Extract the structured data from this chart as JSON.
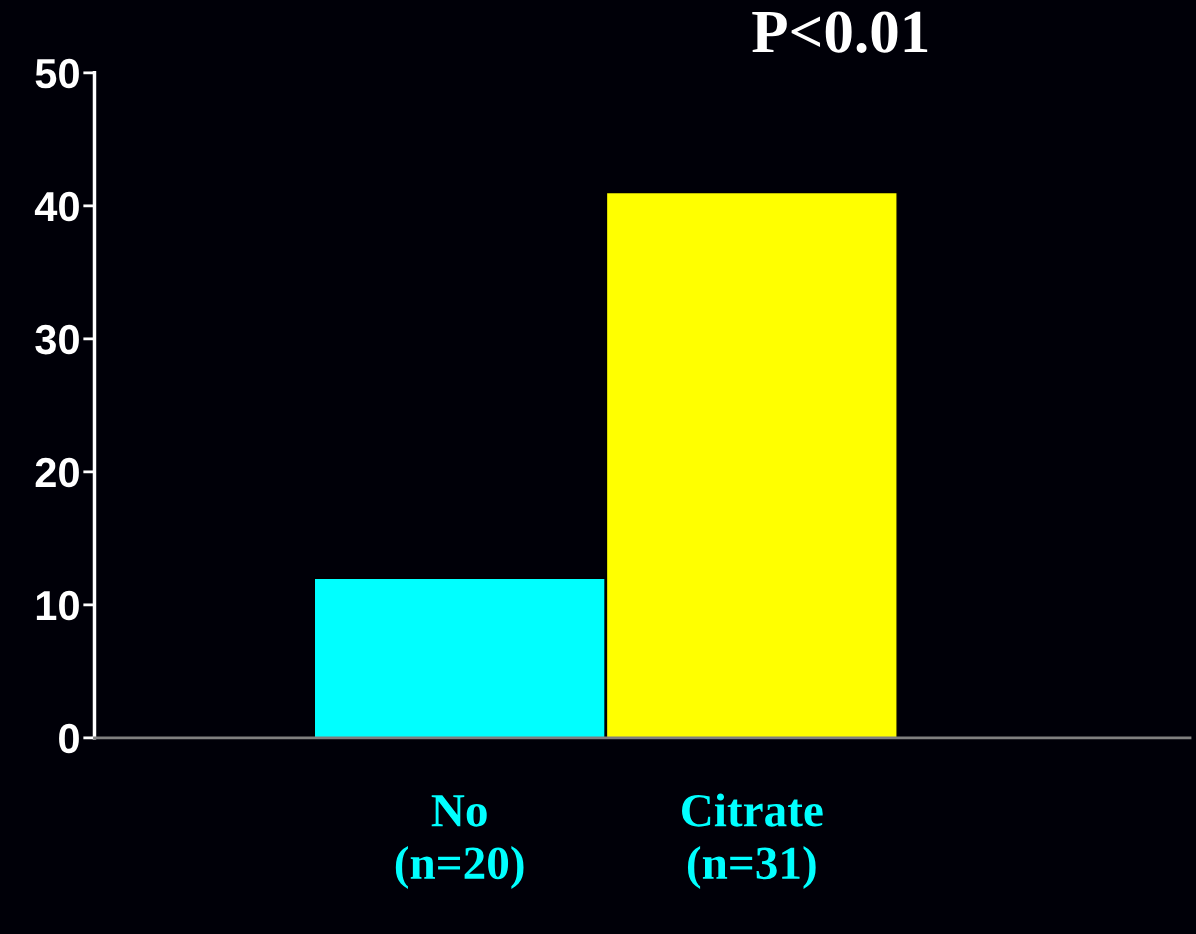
{
  "chart_data": {
    "type": "bar",
    "categories": [
      "No\n(n=20)",
      "Citrate\n(n=31)"
    ],
    "values": [
      12,
      41
    ],
    "colors": [
      "#00ffff",
      "#ffff00"
    ],
    "ylim": [
      0,
      50
    ],
    "yticks": [
      0,
      10,
      20,
      30,
      40,
      50
    ],
    "annotations": [
      "P<0.01"
    ]
  }
}
